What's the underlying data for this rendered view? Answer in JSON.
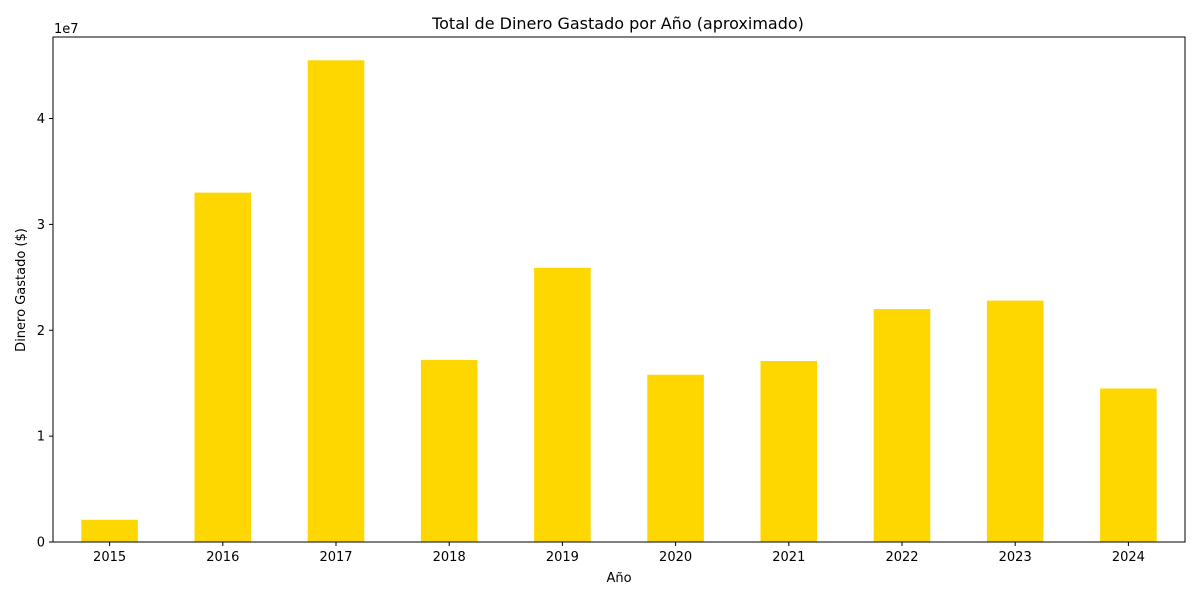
{
  "chart_data": {
    "type": "bar",
    "title": "Total de Dinero Gastado por Año (aproximado)",
    "xlabel": "Año",
    "ylabel": "Dinero Gastado ($)",
    "y_offset_label": "1e7",
    "categories": [
      "2015",
      "2016",
      "2017",
      "2018",
      "2019",
      "2020",
      "2021",
      "2022",
      "2023",
      "2024"
    ],
    "values": [
      2100000,
      33000000,
      45500000,
      17200000,
      25900000,
      15800000,
      17100000,
      22000000,
      22800000,
      14500000
    ],
    "ylim": [
      0,
      47700000
    ],
    "yticks": [
      0,
      10000000,
      20000000,
      30000000,
      40000000
    ],
    "ytick_labels": [
      "0",
      "1",
      "2",
      "3",
      "4"
    ],
    "bar_color": "#ffd700",
    "grid": false,
    "legend": "none"
  }
}
